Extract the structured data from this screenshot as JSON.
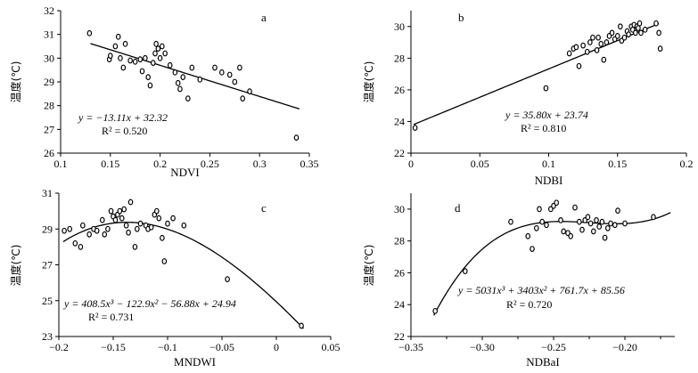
{
  "chart_data": [
    {
      "type": "scatter",
      "panel": "a",
      "xlabel": "NDVI",
      "ylabel": "温度(℃)",
      "xlim": [
        0.1,
        0.35
      ],
      "ylim": [
        26,
        32
      ],
      "xticks": [
        "0.1",
        "0.15",
        "0.2",
        "0.25",
        "0.3",
        "0.35"
      ],
      "yticks": [
        "26",
        "27",
        "28",
        "29",
        "30",
        "31",
        "32"
      ],
      "equation": "y = −13.11x + 32.32",
      "r2": "R² = 0.520",
      "fit": {
        "kind": "linear",
        "coef": [
          32.32,
          -13.11
        ],
        "range": [
          0.13,
          0.34
        ]
      },
      "points": [
        [
          0.129,
          31.05
        ],
        [
          0.149,
          29.95
        ],
        [
          0.15,
          30.1
        ],
        [
          0.155,
          30.5
        ],
        [
          0.158,
          30.9
        ],
        [
          0.16,
          30.0
        ],
        [
          0.163,
          29.6
        ],
        [
          0.165,
          30.6
        ],
        [
          0.17,
          29.9
        ],
        [
          0.175,
          29.85
        ],
        [
          0.18,
          29.95
        ],
        [
          0.182,
          29.45
        ],
        [
          0.185,
          30.0
        ],
        [
          0.188,
          29.2
        ],
        [
          0.19,
          28.85
        ],
        [
          0.193,
          29.8
        ],
        [
          0.195,
          30.2
        ],
        [
          0.196,
          30.6
        ],
        [
          0.198,
          30.4
        ],
        [
          0.2,
          30.0
        ],
        [
          0.202,
          30.5
        ],
        [
          0.205,
          30.2
        ],
        [
          0.21,
          29.7
        ],
        [
          0.215,
          29.4
        ],
        [
          0.218,
          28.95
        ],
        [
          0.22,
          28.7
        ],
        [
          0.223,
          29.2
        ],
        [
          0.228,
          28.3
        ],
        [
          0.232,
          29.6
        ],
        [
          0.24,
          29.1
        ],
        [
          0.255,
          29.6
        ],
        [
          0.262,
          29.4
        ],
        [
          0.27,
          29.3
        ],
        [
          0.275,
          29.0
        ],
        [
          0.28,
          29.6
        ],
        [
          0.283,
          28.3
        ],
        [
          0.29,
          28.6
        ],
        [
          0.337,
          26.65
        ]
      ]
    },
    {
      "type": "scatter",
      "panel": "b",
      "xlabel": "NDBI",
      "ylabel": "温度(℃)",
      "xlim": [
        0,
        0.2
      ],
      "ylim": [
        22,
        31
      ],
      "xticks": [
        "0",
        "0.05",
        "0.1",
        "0.15",
        "0.2"
      ],
      "yticks": [
        "22",
        "24",
        "26",
        "28",
        "30"
      ],
      "equation": "y = 35.80x + 23.74",
      "r2": "R² = 0.810",
      "fit": {
        "kind": "linear",
        "coef": [
          23.74,
          35.8
        ],
        "range": [
          0.002,
          0.18
        ]
      },
      "points": [
        [
          0.003,
          23.6
        ],
        [
          0.098,
          26.1
        ],
        [
          0.115,
          28.3
        ],
        [
          0.118,
          28.6
        ],
        [
          0.12,
          28.7
        ],
        [
          0.122,
          27.5
        ],
        [
          0.125,
          28.8
        ],
        [
          0.128,
          28.4
        ],
        [
          0.13,
          29.0
        ],
        [
          0.132,
          29.3
        ],
        [
          0.135,
          28.5
        ],
        [
          0.136,
          29.3
        ],
        [
          0.138,
          28.9
        ],
        [
          0.14,
          27.9
        ],
        [
          0.142,
          29.0
        ],
        [
          0.144,
          29.4
        ],
        [
          0.146,
          29.6
        ],
        [
          0.148,
          29.2
        ],
        [
          0.15,
          29.4
        ],
        [
          0.152,
          30.0
        ],
        [
          0.153,
          29.1
        ],
        [
          0.155,
          29.3
        ],
        [
          0.157,
          29.7
        ],
        [
          0.158,
          29.5
        ],
        [
          0.16,
          30.0
        ],
        [
          0.161,
          29.8
        ],
        [
          0.162,
          30.1
        ],
        [
          0.163,
          29.6
        ],
        [
          0.164,
          30.0
        ],
        [
          0.165,
          29.9
        ],
        [
          0.166,
          30.2
        ],
        [
          0.167,
          29.6
        ],
        [
          0.17,
          29.8
        ],
        [
          0.178,
          30.2
        ],
        [
          0.18,
          29.6
        ],
        [
          0.181,
          28.6
        ]
      ]
    },
    {
      "type": "scatter",
      "panel": "c",
      "xlabel": "MNDWI",
      "ylabel": "温度(℃)",
      "xlim": [
        -0.2,
        0.05
      ],
      "ylim": [
        23,
        31
      ],
      "xticks": [
        "−0.2",
        "−0.15",
        "−0.1",
        "−0.05",
        "0",
        "0.05"
      ],
      "yticks": [
        "23",
        "25",
        "27",
        "29",
        "31"
      ],
      "equation": "y = 408.5x³ − 122.9x² − 56.88x + 24.94",
      "r2": "R² = 0.731",
      "fit": {
        "kind": "poly",
        "coef": [
          24.94,
          -56.88,
          -122.9,
          408.5
        ],
        "range": [
          -0.196,
          0.025
        ]
      },
      "points": [
        [
          -0.195,
          28.9
        ],
        [
          -0.19,
          29.0
        ],
        [
          -0.185,
          28.2
        ],
        [
          -0.18,
          28.0
        ],
        [
          -0.178,
          29.2
        ],
        [
          -0.172,
          28.7
        ],
        [
          -0.168,
          29.0
        ],
        [
          -0.165,
          28.9
        ],
        [
          -0.16,
          29.5
        ],
        [
          -0.158,
          28.7
        ],
        [
          -0.155,
          29.0
        ],
        [
          -0.152,
          30.0
        ],
        [
          -0.15,
          29.7
        ],
        [
          -0.148,
          29.5
        ],
        [
          -0.146,
          29.8
        ],
        [
          -0.144,
          30.0
        ],
        [
          -0.142,
          29.6
        ],
        [
          -0.14,
          30.1
        ],
        [
          -0.138,
          29.2
        ],
        [
          -0.136,
          28.8
        ],
        [
          -0.134,
          30.5
        ],
        [
          -0.13,
          28.0
        ],
        [
          -0.128,
          29.0
        ],
        [
          -0.125,
          29.3
        ],
        [
          -0.12,
          29.2
        ],
        [
          -0.118,
          29.0
        ],
        [
          -0.115,
          29.1
        ],
        [
          -0.112,
          29.8
        ],
        [
          -0.11,
          30.0
        ],
        [
          -0.108,
          29.6
        ],
        [
          -0.105,
          28.5
        ],
        [
          -0.103,
          27.2
        ],
        [
          -0.1,
          29.3
        ],
        [
          -0.095,
          29.6
        ],
        [
          -0.085,
          29.2
        ],
        [
          -0.045,
          26.2
        ],
        [
          0.023,
          23.6
        ]
      ]
    },
    {
      "type": "scatter",
      "panel": "d",
      "xlabel": "NDBaI",
      "ylabel": "温度(℃)",
      "xlim": [
        -0.35,
        -0.165
      ],
      "ylim": [
        22,
        31
      ],
      "xticks": [
        "−0.35",
        "−0.30",
        "−0.25",
        "−0.20"
      ],
      "yticks": [
        "22",
        "24",
        "26",
        "28",
        "30"
      ],
      "equation": "y = 5031x³ + 3403x² + 761.7x + 85.56",
      "r2": "R² = 0.720",
      "fit": {
        "kind": "poly",
        "coef": [
          85.56,
          761.7,
          3403,
          5031
        ],
        "range": [
          -0.334,
          -0.168
        ]
      },
      "points": [
        [
          -0.333,
          23.6
        ],
        [
          -0.312,
          26.1
        ],
        [
          -0.28,
          29.2
        ],
        [
          -0.268,
          28.3
        ],
        [
          -0.265,
          27.5
        ],
        [
          -0.262,
          28.8
        ],
        [
          -0.26,
          30.0
        ],
        [
          -0.258,
          29.2
        ],
        [
          -0.255,
          29.0
        ],
        [
          -0.252,
          30.0
        ],
        [
          -0.25,
          30.2
        ],
        [
          -0.248,
          30.4
        ],
        [
          -0.245,
          29.3
        ],
        [
          -0.243,
          28.6
        ],
        [
          -0.24,
          28.5
        ],
        [
          -0.238,
          28.3
        ],
        [
          -0.235,
          30.1
        ],
        [
          -0.232,
          29.2
        ],
        [
          -0.23,
          28.7
        ],
        [
          -0.228,
          29.3
        ],
        [
          -0.226,
          29.5
        ],
        [
          -0.224,
          29.1
        ],
        [
          -0.222,
          28.6
        ],
        [
          -0.22,
          29.3
        ],
        [
          -0.218,
          28.9
        ],
        [
          -0.216,
          29.2
        ],
        [
          -0.214,
          28.2
        ],
        [
          -0.212,
          28.8
        ],
        [
          -0.21,
          29.1
        ],
        [
          -0.207,
          29.0
        ],
        [
          -0.205,
          29.9
        ],
        [
          -0.2,
          29.1
        ],
        [
          -0.18,
          29.5
        ]
      ]
    }
  ]
}
